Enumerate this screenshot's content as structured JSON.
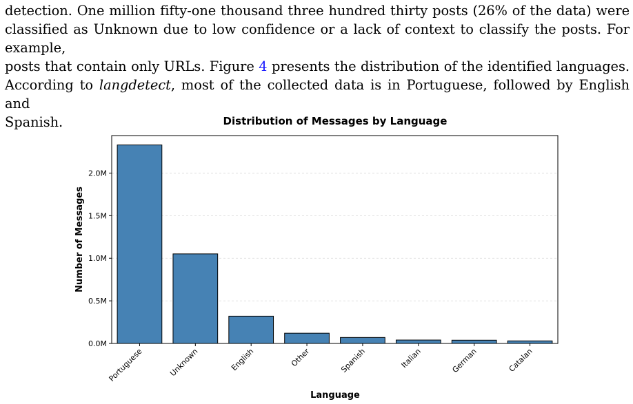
{
  "paragraph": {
    "line1": "detection. One million fifty-one thousand three hundred thirty posts (26% of the data) were",
    "line2": "classified as Unknown due to low confidence or a lack of context to classify the posts. For example,",
    "line3_a": "posts that contain only URLs. Figure ",
    "figure_ref": "4",
    "line3_b": " presents the distribution of the identified languages.",
    "line4_a": "According to ",
    "line4_em": "langdetect",
    "line4_b": ", most of the collected data is in Portuguese, followed by English and",
    "line5": "Spanish."
  },
  "chart_data": {
    "type": "bar",
    "title": "Distribution of Messages by Language",
    "xlabel": "Language",
    "ylabel": "Number of Messages",
    "categories": [
      "Portuguese",
      "Unknown",
      "English",
      "Other",
      "Spanish",
      "Italian",
      "German",
      "Catalan"
    ],
    "values": [
      2330000,
      1051330,
      320000,
      120000,
      70000,
      40000,
      38000,
      30000
    ],
    "ylim": [
      0,
      2440000
    ],
    "yticks": [
      0,
      500000,
      1000000,
      1500000,
      2000000
    ],
    "ytick_labels": [
      "0.0M",
      "0.5M",
      "1.0M",
      "1.5M",
      "2.0M"
    ],
    "grid": true,
    "bar_color": "#4682b4",
    "edge_color": "#000000"
  }
}
